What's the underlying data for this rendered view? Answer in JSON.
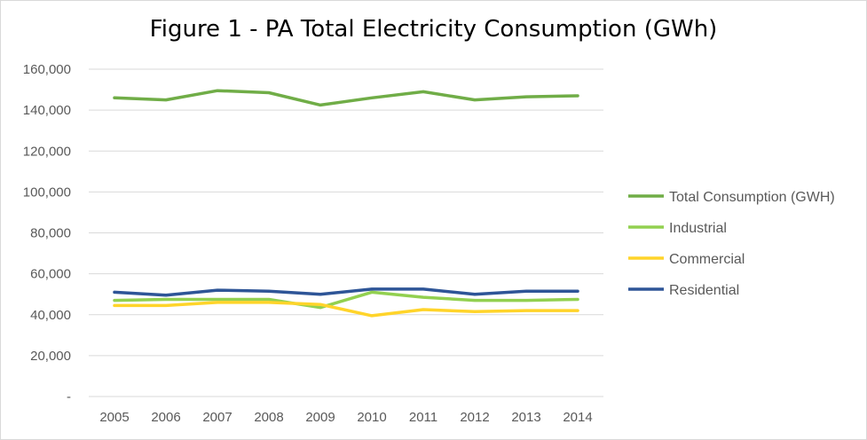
{
  "chart_data": {
    "type": "line",
    "title": "Figure 1 - PA Total Electricity Consumption (GWh)",
    "xlabel": "",
    "ylabel": "",
    "categories": [
      "2005",
      "2006",
      "2007",
      "2008",
      "2009",
      "2010",
      "2011",
      "2012",
      "2013",
      "2014"
    ],
    "ylim": [
      0,
      160000
    ],
    "yticks": [
      0,
      20000,
      40000,
      60000,
      80000,
      100000,
      120000,
      140000,
      160000
    ],
    "ytick_labels": [
      "-",
      "20,000",
      "40,000",
      "60,000",
      "80,000",
      "100,000",
      "120,000",
      "140,000",
      "160,000"
    ],
    "grid": true,
    "legend_position": "right",
    "series": [
      {
        "name": "Total Consumption (GWH)",
        "color": "#70ad47",
        "values": [
          146000,
          145000,
          149500,
          148500,
          142500,
          146000,
          149000,
          145000,
          146500,
          147000
        ]
      },
      {
        "name": "Industrial",
        "color": "#92d050",
        "values": [
          47000,
          47500,
          47500,
          47500,
          43500,
          51000,
          48500,
          47000,
          47000,
          47500
        ]
      },
      {
        "name": "Commercial",
        "color": "#ffd42a",
        "values": [
          44500,
          44500,
          46000,
          46000,
          45000,
          39500,
          42500,
          41500,
          42000,
          42000
        ]
      },
      {
        "name": "Residential",
        "color": "#2e5597",
        "values": [
          51000,
          49500,
          52000,
          51500,
          50000,
          52500,
          52500,
          50000,
          51500,
          51500
        ]
      }
    ]
  }
}
